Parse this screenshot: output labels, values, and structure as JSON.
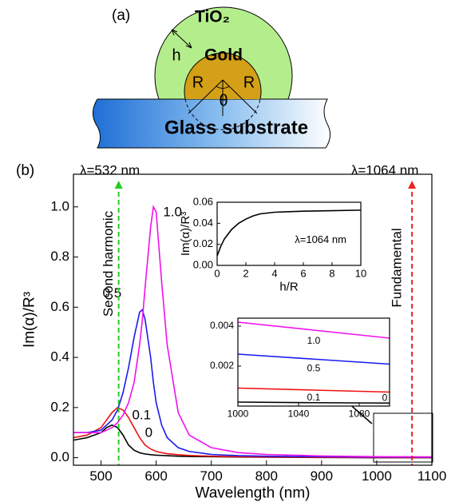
{
  "diagram": {
    "label": "(a)",
    "shell": "TiO₂",
    "core": "Gold",
    "thickness": "h",
    "radius_left": "R",
    "radius_right": "R",
    "angle": "θ",
    "substrate": "Glass substrate"
  },
  "chart_data": [
    {
      "type": "line",
      "label": "(b)",
      "xlabel": "Wavelength (nm)",
      "ylabel": "Im(α)/R³",
      "x": [
        450,
        475,
        500,
        510,
        520,
        530,
        540,
        550,
        560,
        570,
        575,
        580,
        590,
        595,
        600,
        610,
        620,
        640,
        660,
        700,
        750,
        800,
        900,
        1000,
        1100
      ],
      "series": [
        {
          "name": "0",
          "color": "#000000",
          "values": [
            0.07,
            0.08,
            0.1,
            0.12,
            0.13,
            0.12,
            0.09,
            0.05,
            0.03,
            0.02,
            0.017,
            0.015,
            0.012,
            0.011,
            0.01,
            0.009,
            0.008,
            0.006,
            0.005,
            0.004,
            0.003,
            0.002,
            0.001,
            0.0002,
            0.00015
          ]
        },
        {
          "name": "0.1",
          "color": "#ee1111",
          "values": [
            0.08,
            0.09,
            0.12,
            0.15,
            0.18,
            0.2,
            0.19,
            0.16,
            0.12,
            0.08,
            0.065,
            0.05,
            0.035,
            0.03,
            0.025,
            0.02,
            0.016,
            0.012,
            0.009,
            0.006,
            0.004,
            0.003,
            0.0015,
            0.0009,
            0.0007
          ]
        },
        {
          "name": "0.5",
          "color": "#1a1aee",
          "values": [
            0.1,
            0.1,
            0.11,
            0.13,
            0.15,
            0.19,
            0.26,
            0.36,
            0.48,
            0.58,
            0.59,
            0.55,
            0.4,
            0.3,
            0.22,
            0.13,
            0.08,
            0.04,
            0.025,
            0.013,
            0.008,
            0.006,
            0.004,
            0.0026,
            0.0021
          ]
        },
        {
          "name": "1.0",
          "color": "#ee11ee",
          "values": [
            0.1,
            0.1,
            0.1,
            0.11,
            0.12,
            0.14,
            0.17,
            0.22,
            0.3,
            0.45,
            0.55,
            0.68,
            0.92,
            1.0,
            0.98,
            0.7,
            0.45,
            0.18,
            0.09,
            0.04,
            0.02,
            0.013,
            0.007,
            0.0042,
            0.0034
          ]
        }
      ],
      "reference_lines": [
        {
          "x": 532,
          "label": "λ=532 nm",
          "note": "Second harmonic",
          "color": "#22cc22"
        },
        {
          "x": 1064,
          "label": "λ=1064 nm",
          "note": "Fundamental",
          "color": "#ee2222"
        }
      ],
      "xlim": [
        450,
        1100
      ],
      "ylim": [
        -0.03,
        1.13
      ],
      "xticks": [
        500,
        600,
        700,
        800,
        900,
        1000,
        1100
      ],
      "yticks": [
        {
          "value": 0,
          "label": "0.0"
        },
        0.2,
        0.4,
        0.6,
        0.8,
        {
          "value": 1,
          "label": "1.0"
        }
      ]
    },
    {
      "type": "line",
      "xlabel": "h/R",
      "ylabel": "Im(α)/R³",
      "annotation": "λ=1064 nm",
      "x": [
        0,
        0.25,
        0.5,
        1,
        1.5,
        2,
        2.5,
        3,
        4,
        5,
        6,
        8,
        10
      ],
      "series": [
        {
          "color": "#000000",
          "values": [
            0.009,
            0.018,
            0.025,
            0.034,
            0.04,
            0.044,
            0.047,
            0.049,
            0.0505,
            0.051,
            0.0515,
            0.052,
            0.0525
          ]
        }
      ],
      "xlim": [
        0,
        10
      ],
      "ylim": [
        0,
        0.06
      ],
      "xticks": [
        0,
        2,
        4,
        6,
        8,
        10
      ],
      "yticks": [
        {
          "value": 0,
          "label": "0.00"
        },
        {
          "value": 0.02,
          "label": "0.02"
        },
        {
          "value": 0.04,
          "label": "0.04"
        },
        {
          "value": 0.06,
          "label": "0.06"
        }
      ]
    },
    {
      "type": "line",
      "x": [
        1000,
        1050,
        1100
      ],
      "series": [
        {
          "name": "0",
          "color": "#000000",
          "values": [
            0.0002,
            0.00017,
            0.00015
          ]
        },
        {
          "name": "0.1",
          "color": "#ee1111",
          "values": [
            0.0009,
            0.0008,
            0.0007
          ]
        },
        {
          "name": "0.5",
          "color": "#1a1aee",
          "values": [
            0.0026,
            0.00235,
            0.0021
          ]
        },
        {
          "name": "1.0",
          "color": "#ee11ee",
          "values": [
            0.0042,
            0.0038,
            0.0034
          ]
        }
      ],
      "xlim": [
        1000,
        1100
      ],
      "ylim": [
        0,
        0.0044
      ],
      "xticks": [
        1000,
        1040,
        1080
      ],
      "yticks": [
        0.002,
        0.004
      ]
    }
  ]
}
